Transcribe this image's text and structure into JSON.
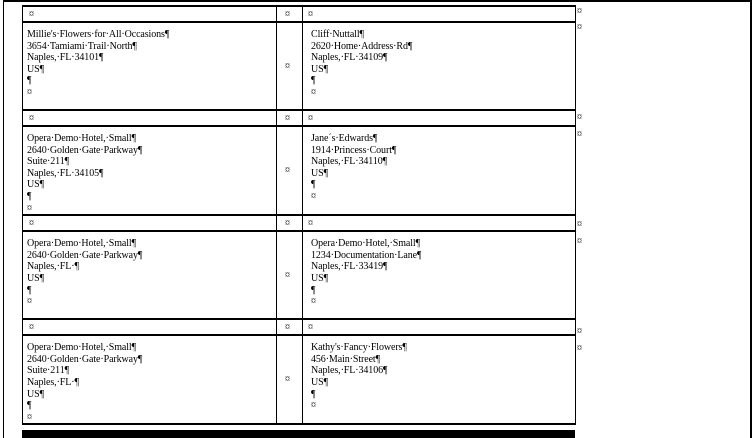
{
  "document": {
    "type": "mail-merge-labels",
    "formatting_marks_visible": true
  },
  "marks": {
    "pilcrow": "¶",
    "cell_end": "¤",
    "space_dot": "·"
  },
  "colors": {
    "text": "#000000",
    "border": "#000000",
    "page_background": "#ffffff"
  },
  "labels_grid": {
    "rows": [
      {
        "left": {
          "lines": [
            "Millie's Flowers for All Occasions",
            "3654 Tamiami Trail North",
            "Naples, FL 34101",
            "US",
            ""
          ]
        },
        "right": {
          "lines": [
            "Cliff Nuttall",
            "2620 Home Address Rd",
            "Naples, FL 34109",
            "US",
            ""
          ]
        }
      },
      {
        "left": {
          "lines": [
            "Opera Demo Hotel, Small",
            "2640 Golden Gate Parkway",
            "Suite 211",
            "Naples, FL 34105",
            "US",
            ""
          ]
        },
        "right": {
          "lines": [
            "Jane´s Edwards",
            "1914 Princess Court",
            "Naples, FL 34110",
            "US",
            ""
          ]
        }
      },
      {
        "left": {
          "lines": [
            "Opera Demo Hotel, Small",
            "2640 Golden Gate Parkway",
            "Naples, FL ",
            "US",
            ""
          ]
        },
        "right": {
          "lines": [
            "Opera Demo Hotel, Small",
            "1234 Documentation Lane",
            "Naples, FL 33419",
            "US",
            ""
          ]
        }
      },
      {
        "left": {
          "lines": [
            "Opera Demo Hotel, Small",
            "2640 Golden Gate Parkway",
            "Suite 211",
            "Naples, FL ",
            "US",
            ""
          ]
        },
        "right": {
          "lines": [
            "Kathy's Fancy Flowers",
            "456 Main Street",
            "Naples, FL 34106",
            "US",
            ""
          ]
        }
      }
    ]
  },
  "row_end_marker_tops": [
    7,
    23,
    113,
    130,
    220,
    237,
    327,
    344
  ]
}
